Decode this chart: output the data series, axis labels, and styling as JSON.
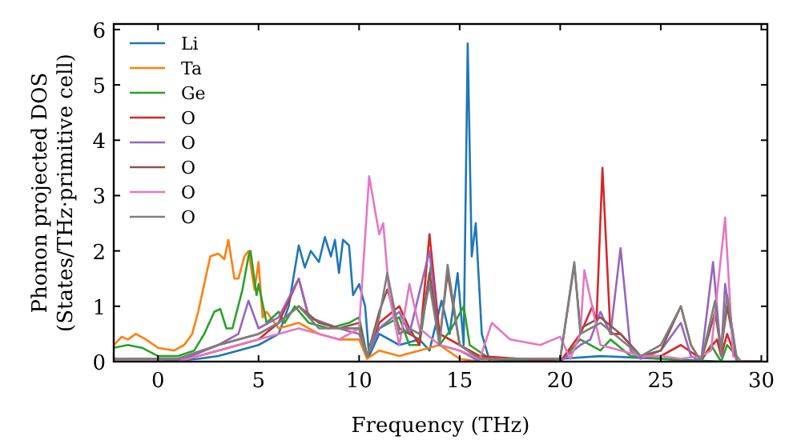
{
  "chart_data": {
    "type": "line",
    "xlabel": "Frequency (THz)",
    "ylabel": "Phonon projected DOS\n(States/THz·primitive cell)",
    "xlim": [
      -2.2,
      30.3
    ],
    "ylim": [
      0,
      6.1
    ],
    "xticks": [
      0,
      5,
      10,
      15,
      20,
      25,
      30
    ],
    "yticks": [
      0,
      1,
      2,
      3,
      4,
      5,
      6
    ],
    "grid": false,
    "legend": "top left",
    "marker": "none",
    "line_style": "solid",
    "series": [
      {
        "name": "Li",
        "color": "#1f77b4",
        "x": [
          -2.2,
          0,
          1,
          2,
          3,
          4,
          5,
          5.5,
          6,
          6.5,
          7,
          7.3,
          7.6,
          8,
          8.3,
          8.6,
          8.8,
          9,
          9.2,
          9.5,
          9.7,
          10,
          10.3,
          10.5,
          11,
          12,
          13,
          13.5,
          14.1,
          14.5,
          14.9,
          15.2,
          15.4,
          15.6,
          15.8,
          16.1,
          16.5,
          20,
          22,
          25,
          28,
          30
        ],
        "values": [
          0,
          0,
          0.02,
          0.05,
          0.1,
          0.2,
          0.3,
          0.4,
          0.5,
          1.0,
          2.1,
          1.7,
          2.0,
          1.8,
          2.25,
          1.9,
          2.2,
          1.6,
          2.2,
          2.1,
          1.2,
          1.4,
          1.0,
          0.1,
          0.5,
          0.3,
          0.4,
          0.2,
          1.1,
          0.5,
          1.6,
          0.3,
          5.75,
          1.9,
          2.5,
          0.5,
          0,
          0.05,
          0.1,
          0.05,
          0,
          0
        ]
      },
      {
        "name": "Ta",
        "color": "#ff7f0e",
        "x": [
          -2.2,
          -1.8,
          -1.5,
          -1.1,
          -0.6,
          0,
          0.8,
          1.3,
          1.7,
          2,
          2.3,
          2.6,
          3,
          3.3,
          3.5,
          3.8,
          4,
          4.3,
          4.5,
          4.8,
          5,
          5.2,
          5.4,
          6,
          7,
          8,
          9,
          10,
          10.4,
          11,
          12,
          13,
          14,
          15,
          16,
          20
        ],
        "values": [
          0.3,
          0.45,
          0.4,
          0.5,
          0.4,
          0.25,
          0.2,
          0.3,
          0.5,
          0.9,
          1.4,
          1.9,
          1.95,
          1.85,
          2.2,
          1.5,
          1.5,
          1.9,
          2.0,
          1.3,
          1.8,
          0.8,
          0.9,
          0.6,
          0.7,
          0.5,
          0.4,
          0.4,
          0.05,
          0.2,
          0.1,
          0.2,
          0.3,
          0.05,
          0,
          0
        ]
      },
      {
        "name": "Ge",
        "color": "#2ca02c",
        "x": [
          -2.2,
          -1.5,
          -0.8,
          0,
          1,
          1.8,
          2.3,
          2.8,
          3.1,
          3.4,
          3.7,
          4.2,
          4.5,
          4.6,
          4.9,
          5,
          5.4,
          6,
          6.3,
          6.8,
          7.5,
          8.5,
          9.5,
          10,
          10.4,
          11,
          12,
          12.5,
          13,
          13.6,
          14,
          14.6,
          15.2,
          15.5,
          16.5,
          20,
          21,
          22,
          22.5,
          23.5,
          25,
          27,
          27.5,
          28,
          28.3,
          29,
          30
        ],
        "values": [
          0.25,
          0.3,
          0.25,
          0.1,
          0.1,
          0.2,
          0.5,
          0.9,
          0.95,
          0.6,
          0.6,
          1.3,
          1.9,
          2.0,
          1.2,
          1.4,
          0.7,
          0.9,
          0.7,
          1.0,
          0.7,
          0.6,
          0.7,
          0.8,
          0.1,
          0.6,
          0.8,
          0.3,
          0.3,
          1.8,
          0.3,
          0.6,
          1.0,
          0.3,
          0.05,
          0,
          0.4,
          0.2,
          0.4,
          0.1,
          0.05,
          0,
          0.3,
          0,
          0.3,
          0,
          0
        ]
      },
      {
        "name": "O",
        "color": "#d62728",
        "x": [
          -2.2,
          1,
          3,
          5,
          6,
          7,
          7.5,
          9,
          10,
          10.4,
          11,
          12,
          12.5,
          13,
          13.5,
          14,
          15,
          16,
          20,
          21,
          21.6,
          21.8,
          22.1,
          22.5,
          23,
          24,
          25,
          26,
          27,
          27.8,
          28,
          28.3,
          28.8,
          30
        ],
        "values": [
          0,
          0,
          0.2,
          0.4,
          0.7,
          1.5,
          0.8,
          0.6,
          0.6,
          0.1,
          0.7,
          1.0,
          0.6,
          0.3,
          2.3,
          0.5,
          0.3,
          0.1,
          0,
          0.5,
          1.0,
          0.7,
          3.5,
          0.5,
          0.5,
          0.1,
          0.1,
          0.3,
          0.05,
          0.4,
          0.1,
          0.5,
          0,
          0
        ]
      },
      {
        "name": "O",
        "color": "#9467bd",
        "x": [
          -2.2,
          1,
          3,
          4,
          4.5,
          5,
          6,
          7,
          7.5,
          9,
          10,
          10.4,
          11,
          12,
          12.5,
          13.5,
          14,
          15,
          16,
          20,
          21,
          21.5,
          22,
          22.5,
          23,
          23.5,
          24,
          25,
          26,
          26.5,
          27,
          27.6,
          28,
          28.2,
          28.8,
          30
        ],
        "values": [
          0,
          0,
          0.3,
          0.5,
          1.1,
          0.6,
          0.8,
          1.5,
          0.8,
          0.6,
          0.5,
          0.1,
          0.6,
          0.9,
          0.5,
          2.0,
          0.3,
          0.2,
          0,
          0,
          0.3,
          0.4,
          0.9,
          0.5,
          2.05,
          0.2,
          0.05,
          0.2,
          0.7,
          0.1,
          0,
          1.8,
          0.1,
          1.4,
          0,
          0
        ]
      },
      {
        "name": "O",
        "color": "#8c564b",
        "x": [
          -2.2,
          1,
          3,
          5,
          6,
          7,
          8,
          9,
          10,
          10.4,
          11,
          11.4,
          12,
          12.5,
          13,
          13.5,
          14,
          14.4,
          15,
          16,
          20,
          20.7,
          21,
          21.5,
          22,
          23,
          24,
          25,
          26,
          26.5,
          27,
          27.7,
          28,
          28.3,
          28.8,
          30
        ],
        "values": [
          0.05,
          0.05,
          0.3,
          0.5,
          0.7,
          1.0,
          0.7,
          0.6,
          0.7,
          0.1,
          0.9,
          1.3,
          0.6,
          0.5,
          0.4,
          1.6,
          0.4,
          1.6,
          0.3,
          0.05,
          0.05,
          1.75,
          0.6,
          0.7,
          0.8,
          0.5,
          0.1,
          0.2,
          1.0,
          0.3,
          0,
          0.9,
          0.2,
          1.0,
          0,
          0
        ]
      },
      {
        "name": "O",
        "color": "#e377c2",
        "x": [
          -2.2,
          1,
          3,
          5,
          7,
          9,
          10,
          10.5,
          11,
          11.2,
          11.5,
          12,
          12.5,
          13,
          14,
          15,
          16,
          16.6,
          17.5,
          19,
          20,
          20.5,
          21,
          21.2,
          22,
          24,
          25,
          26,
          27,
          27.5,
          28.2,
          28.6,
          29,
          30
        ],
        "values": [
          0,
          0,
          0.2,
          0.4,
          0.6,
          0.4,
          0.6,
          3.35,
          2.3,
          2.5,
          1.2,
          0.3,
          1.4,
          0.6,
          0.3,
          0.2,
          0.05,
          0.7,
          0.4,
          0.3,
          0.45,
          0.05,
          0.5,
          1.65,
          0.3,
          0.1,
          0.1,
          0.05,
          0.1,
          0.2,
          2.6,
          0.1,
          0,
          0
        ]
      },
      {
        "name": "O",
        "color": "#7f7f7f",
        "x": [
          -2.2,
          1,
          3,
          5,
          6,
          7,
          8,
          9,
          10,
          10.4,
          11,
          11.4,
          12,
          12.5,
          13,
          13.5,
          14,
          14.4,
          15,
          16,
          20,
          20.7,
          21,
          21.5,
          22,
          23,
          24,
          25,
          26,
          26.5,
          27,
          27.7,
          28,
          28.3,
          28.8,
          30
        ],
        "values": [
          0.05,
          0.05,
          0.3,
          0.5,
          0.7,
          1.0,
          0.6,
          0.6,
          0.6,
          0.1,
          0.8,
          1.6,
          0.5,
          0.6,
          0.5,
          1.4,
          0.3,
          1.75,
          0.3,
          0.05,
          0.05,
          1.8,
          0.5,
          0.6,
          0.7,
          0.4,
          0.1,
          0.3,
          1.0,
          0.3,
          0,
          1.1,
          0.2,
          1.2,
          0,
          0
        ]
      }
    ]
  }
}
